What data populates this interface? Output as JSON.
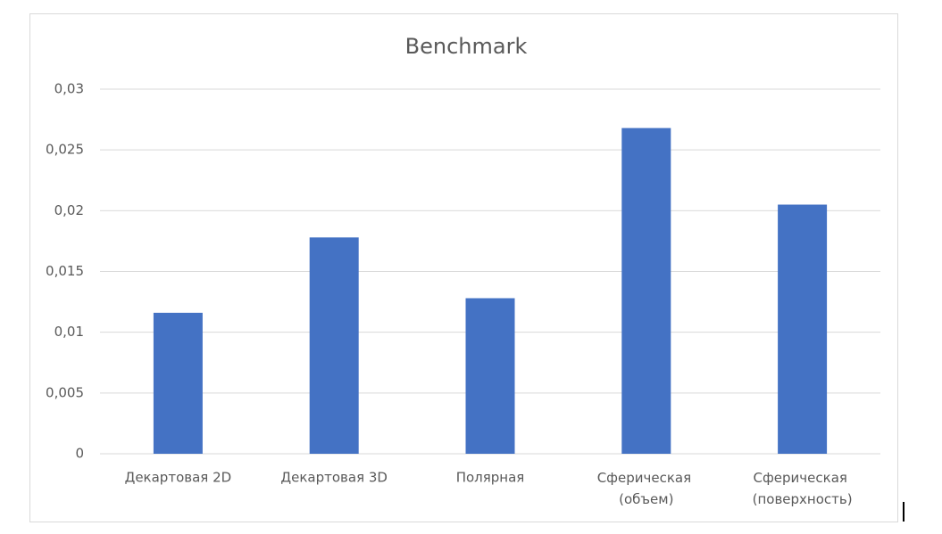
{
  "chart_data": {
    "type": "bar",
    "title": "Benchmark",
    "categories": [
      "Декартовая 2D",
      "Декартовая 3D",
      "Полярная",
      "Сферическая (объем)",
      "Сферическая (поверхность)"
    ],
    "values": [
      0.0116,
      0.0178,
      0.0128,
      0.0268,
      0.0205
    ],
    "color": "#4472c4",
    "ylim": [
      0,
      0.03
    ],
    "yticks": [
      0,
      {
        "value": 0.005,
        "label": "0,005"
      },
      {
        "value": 0.01,
        "label": "0,01"
      },
      {
        "value": 0.015,
        "label": "0,015"
      },
      {
        "value": 0.02,
        "label": "0,02"
      },
      {
        "value": 0.025,
        "label": "0,025"
      },
      {
        "value": 0.03,
        "label": "0,03"
      }
    ],
    "grid": true
  }
}
